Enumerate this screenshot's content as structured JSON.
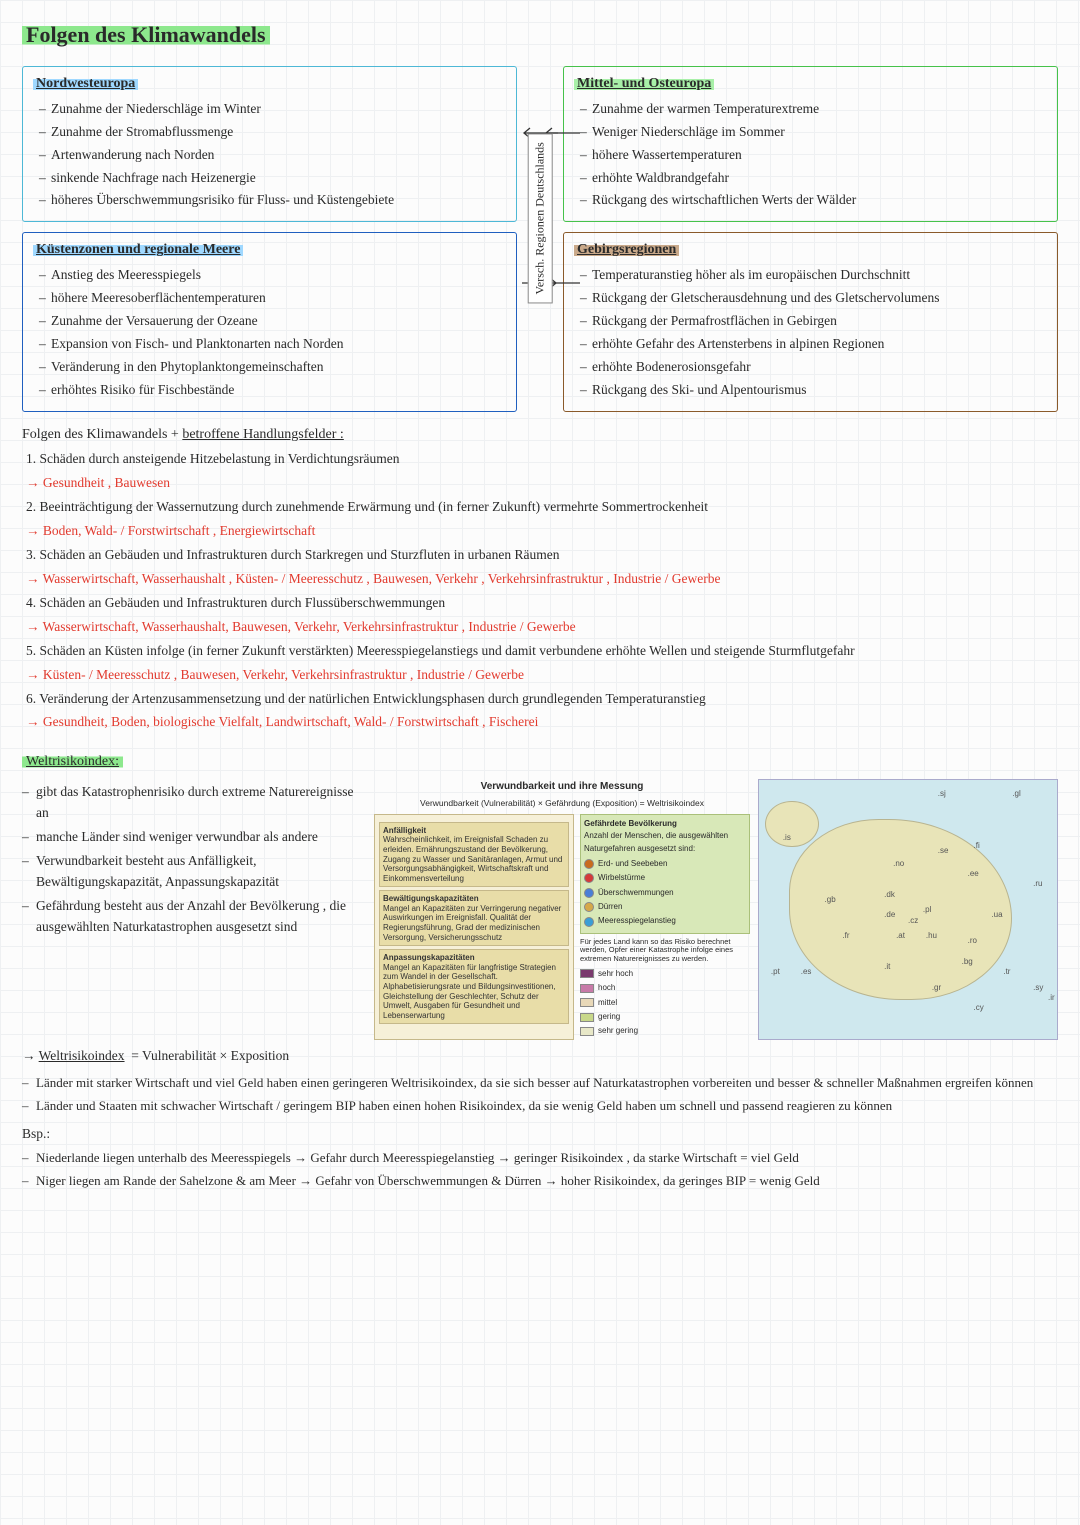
{
  "colors": {
    "accent_green": "#8de88d",
    "accent_blue": "#9fd8ff",
    "red": "#e23a2e",
    "cyan": "#4db8d6",
    "blue": "#1f5fbf",
    "green": "#46c24a",
    "brown": "#8a5a2a"
  },
  "title": "Folgen des Klimawandels",
  "connector_label": "Versch. Regionen Deutschlands",
  "boxes": {
    "nw": {
      "title": "Nordwesteuropa",
      "items": [
        "Zunahme der Niederschläge im Winter",
        "Zunahme der Stromabflussmenge",
        "Artenwanderung nach Norden",
        "sinkende Nachfrage nach Heizenergie",
        "höheres Überschwemmungsrisiko für Fluss- und Küstengebiete"
      ]
    },
    "coast": {
      "title": "Küstenzonen und regionale Meere",
      "items": [
        "Anstieg des Meeresspiegels",
        "höhere Meeresoberflächentemperaturen",
        "Zunahme der Versauerung der Ozeane",
        "Expansion von Fisch- und Planktonarten nach Norden",
        "Veränderung in den Phytoplanktongemeinschaften",
        "erhöhtes Risiko für Fischbestände"
      ]
    },
    "mo": {
      "title": "Mittel- und Osteuropa",
      "items": [
        "Zunahme der warmen Temperaturextreme",
        "Weniger Niederschläge im Sommer",
        "höhere Wassertemperaturen",
        "erhöhte Waldbrandgefahr",
        "Rückgang des wirtschaftlichen Werts der Wälder"
      ]
    },
    "mnt": {
      "title": "Gebirgsregionen",
      "items": [
        "Temperaturanstieg höher als im europäischen Durchschnitt",
        "Rückgang der Gletscherausdehnung und des Gletschervolumens",
        "Rückgang der Permafrostflächen in Gebirgen",
        "erhöhte Gefahr des Artensterbens in alpinen Regionen",
        "erhöhte Bodenerosionsgefahr",
        "Rückgang des Ski- und Alpentourismus"
      ]
    }
  },
  "list_heading_a": "Folgen des Klimawandels + ",
  "list_heading_b": "betroffene Handlungsfelder :",
  "impacts": [
    {
      "n": "1.",
      "t": "Schäden durch ansteigende Hitzebelastung in Verdichtungsräumen",
      "f": "Gesundheit , Bauwesen"
    },
    {
      "n": "2.",
      "t": "Beeinträchtigung der Wassernutzung durch zunehmende Erwärmung und (in ferner Zukunft) vermehrte Sommertrockenheit",
      "f": "Boden, Wald- / Forstwirtschaft , Energiewirtschaft"
    },
    {
      "n": "3.",
      "t": "Schäden an Gebäuden und Infrastrukturen durch Starkregen und Sturzfluten in urbanen Räumen",
      "f": "Wasserwirtschaft, Wasserhaushalt , Küsten- / Meeresschutz , Bauwesen, Verkehr , Verkehrsinfrastruktur , Industrie / Gewerbe"
    },
    {
      "n": "4.",
      "t": "Schäden an Gebäuden und Infrastrukturen durch Flussüberschwemmungen",
      "f": "Wasserwirtschaft, Wasserhaushalt, Bauwesen, Verkehr, Verkehrsinfrastruktur , Industrie / Gewerbe"
    },
    {
      "n": "5.",
      "t": "Schäden an Küsten infolge (in ferner Zukunft verstärkten) Meeresspiegelanstiegs und damit verbundene erhöhte Wellen und steigende Sturmflutgefahr",
      "f": "Küsten- / Meeresschutz , Bauwesen, Verkehr, Verkehrsinfrastruktur , Industrie / Gewerbe"
    },
    {
      "n": "6.",
      "t": "Veränderung der Artenzusammensetzung und der natürlichen Entwicklungsphasen durch grundlegenden Temperaturanstieg",
      "f": "Gesundheit, Boden, biologische Vielfalt, Landwirtschaft, Wald- / Forstwirtschaft , Fischerei"
    }
  ],
  "wri_title": "Weltrisikoindex:",
  "wri_points": [
    "gibt das Katastrophenrisiko durch extreme Naturereignisse an",
    "manche Länder sind weniger verwundbar als andere",
    "Verwundbarkeit besteht aus Anfälligkeit, Bewältigungskapazität, Anpassungskapazität",
    "Gefährdung besteht aus der Anzahl der Bevölkerung , die ausgewählten Naturkatastrophen ausgesetzt sind"
  ],
  "wri_formula_label": "Weltrisikoindex",
  "wri_formula": "= Vulnerabilität × Exposition",
  "wri_after": [
    "Länder mit starker Wirtschaft und viel Geld haben einen geringeren Weltrisikoindex, da sie sich besser auf Naturkatastrophen vorbereiten und besser & schneller Maßnahmen ergreifen können",
    "Länder und Staaten mit schwacher Wirtschaft / geringem BIP haben einen hohen Risikoindex, da sie wenig Geld haben um schnell und passend reagieren zu können"
  ],
  "bsp_label": "Bsp.:",
  "bsp": [
    "Niederlande liegen unterhalb des Meeresspiegels → Gefahr durch Meeresspiegelanstieg → geringer Risikoindex , da starke Wirtschaft = viel Geld",
    "Niger liegen am Rande der Sahelzone & am Meer → Gefahr von Überschwemmungen & Dürren → hoher Risikoindex, da geringes BIP = wenig Geld"
  ],
  "fig": {
    "title": "Verwundbarkeit und ihre Messung",
    "eq": "Verwundbarkeit (Vulnerabilität)   ×   Gefährdung (Exposition)   =   Weltrisikoindex",
    "left": [
      {
        "h": "Anfälligkeit",
        "t": "Wahrscheinlichkeit, im Ereignisfall Schaden zu erleiden. Ernährungszustand der Bevölkerung, Zugang zu Wasser und Sanitäranlagen, Armut und Versorgungsabhängigkeit, Wirtschaftskraft und Einkommensverteilung"
      },
      {
        "h": "Bewältigungskapazitäten",
        "t": "Mangel an Kapazitäten zur Verringerung negativer Auswirkungen im Ereignisfall. Qualität der Regierungsführung, Grad der medizinischen Versorgung, Versicherungsschutz"
      },
      {
        "h": "Anpassungskapazitäten",
        "t": "Mangel an Kapazitäten für langfristige Strategien zum Wandel in der Gesellschaft. Alphabetisierungsrate und Bildungsinvestitionen, Gleichstellung der Geschlechter, Schutz der Umwelt, Ausgaben für Gesundheit und Lebenserwartung"
      }
    ],
    "right_h": "Gefährdete Bevölkerung",
    "right_t": "Anzahl der Menschen, die ausgewählten Naturgefahren ausgesetzt sind:",
    "hazards": [
      {
        "c": "#c96b1e",
        "l": "Erd- und Seebeben"
      },
      {
        "c": "#d43a3a",
        "l": "Wirbelstürme"
      },
      {
        "c": "#4a7fd6",
        "l": "Überschwemmungen"
      },
      {
        "c": "#d6a94a",
        "l": "Dürren"
      },
      {
        "c": "#3a9ed6",
        "l": "Meeresspiegelanstieg"
      }
    ],
    "note": "Für jedes Land kann so das Risiko berechnet werden, Opfer einer Katastrophe infolge eines extremen Naturereignisses zu werden.",
    "scale": [
      {
        "c": "#7a3a6e",
        "l": "sehr hoch"
      },
      {
        "c": "#c77aa8",
        "l": "hoch"
      },
      {
        "c": "#e8d8b8",
        "l": "mittel"
      },
      {
        "c": "#c8d88a",
        "l": "gering"
      },
      {
        "c": "#e8e8c8",
        "l": "sehr gering"
      }
    ],
    "map_labels": [
      ".gl",
      ".is",
      ".se",
      ".no",
      ".fi",
      ".dk",
      ".gb",
      ".de",
      ".pl",
      ".ua",
      ".fr",
      ".es",
      ".pt",
      ".it",
      ".gr",
      ".tr",
      ".sy",
      ".ir",
      ".cy",
      ".sj",
      ".ee",
      ".ru",
      ".cz",
      ".at",
      ".hu",
      ".ro",
      ".bg"
    ]
  }
}
